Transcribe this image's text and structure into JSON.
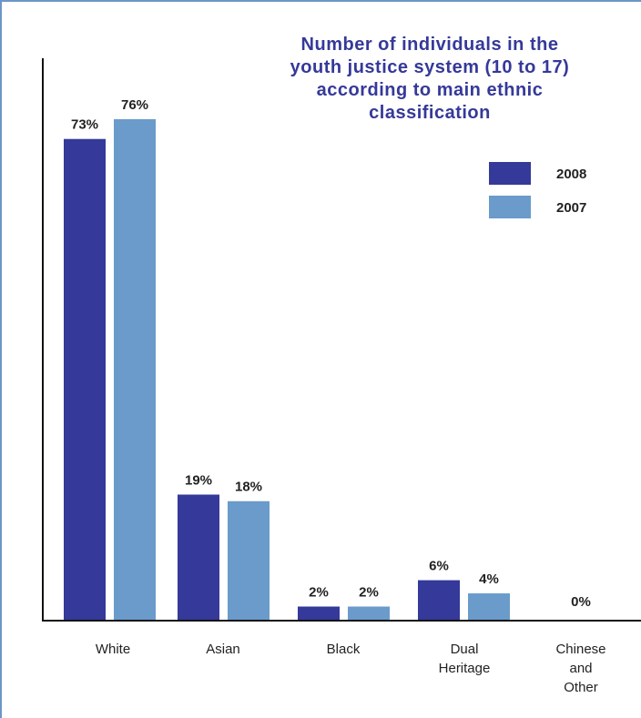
{
  "chart_data": {
    "type": "bar",
    "title_lines": [
      "Number of individuals in the",
      "youth justice system (10 to 17)",
      "according to main ethnic",
      "classification"
    ],
    "categories": [
      [
        "White"
      ],
      [
        "Asian"
      ],
      [
        "Black"
      ],
      [
        "Dual",
        "Heritage"
      ],
      [
        "Chinese",
        "and",
        "Other"
      ]
    ],
    "series": [
      {
        "name": "2008",
        "color": "#353999",
        "values": [
          73,
          19,
          2,
          6,
          0
        ],
        "labels": [
          "73%",
          "19%",
          "2%",
          "6%",
          "0%"
        ]
      },
      {
        "name": "2007",
        "color": "#6a9bcb",
        "values": [
          76,
          18,
          2,
          4,
          0
        ],
        "labels": [
          "76%",
          "18%",
          "2%",
          "4%",
          ""
        ]
      }
    ],
    "unit": "%",
    "ylim": [
      0,
      76
    ],
    "grid": false,
    "legend_position": "top-right"
  }
}
